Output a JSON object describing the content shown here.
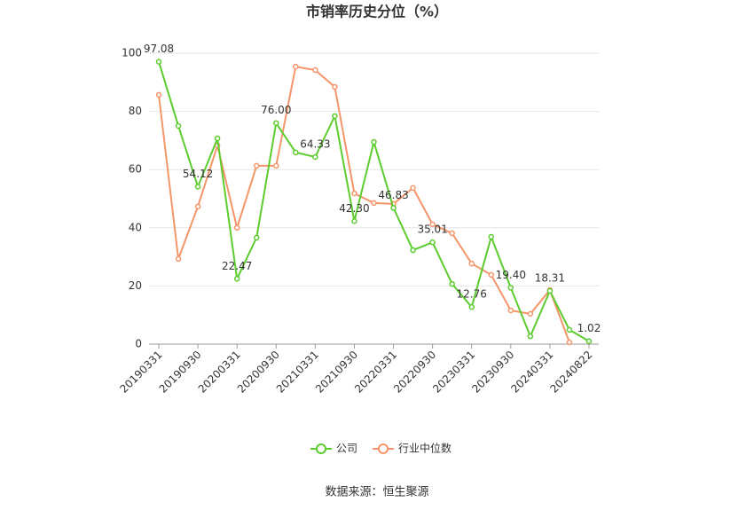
{
  "chart_data": {
    "type": "line",
    "title": "市销率历史分位（%）",
    "categories": [
      "20190331",
      null,
      "20190930",
      null,
      "20200331",
      null,
      "20200930",
      null,
      "20210331",
      null,
      "20210930",
      null,
      "20220331",
      null,
      "20220930",
      null,
      "20230331",
      null,
      "20230930",
      null,
      "20240331",
      null,
      "20240822"
    ],
    "series": [
      {
        "name": "公司",
        "color": "#5ccc2e",
        "values": [
          97.08,
          75,
          54.12,
          70.7,
          22.47,
          36.6,
          76.0,
          65.9,
          64.33,
          78.4,
          42.3,
          69.5,
          46.83,
          32.3,
          35.01,
          20.7,
          12.76,
          36.9,
          19.4,
          2.7,
          18.31,
          4.9,
          1.02
        ],
        "value_labels": [
          "97.08",
          null,
          "54.12",
          null,
          "22.47",
          null,
          "76.00",
          null,
          "64.33",
          null,
          "42.30",
          null,
          "46.83",
          null,
          "35.01",
          null,
          "12.76",
          null,
          "19.40",
          null,
          "18.31",
          null,
          "1.02"
        ]
      },
      {
        "name": "行业中位数",
        "color": "#f4956a",
        "values": [
          85.7,
          29.3,
          47.3,
          68.3,
          40,
          61.3,
          61.3,
          95.4,
          94.2,
          88.4,
          51.8,
          48.5,
          48.2,
          53.7,
          41.2,
          38.1,
          27.7,
          23.8,
          11.6,
          10.4,
          18.6,
          0.6,
          null
        ]
      }
    ],
    "ylim": [
      0,
      100
    ],
    "yticks": [
      0,
      20,
      40,
      60,
      80,
      100
    ],
    "grid": true,
    "source": "数据来源：恒生聚源"
  }
}
